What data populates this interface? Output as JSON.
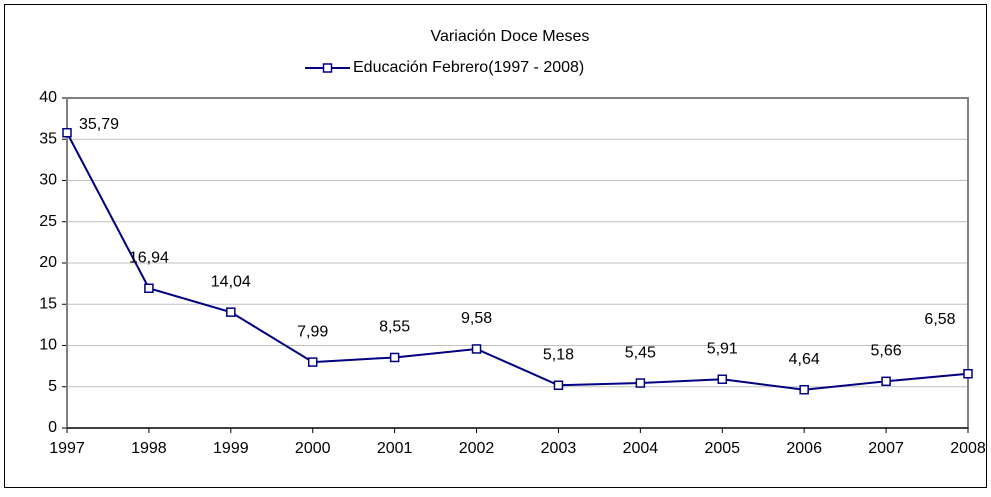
{
  "chart_data": {
    "type": "line",
    "title": "Variación Doce Meses",
    "categories": [
      "1997",
      "1998",
      "1999",
      "2000",
      "2001",
      "2002",
      "2003",
      "2004",
      "2005",
      "2006",
      "2007",
      "2008"
    ],
    "series": [
      {
        "name": "Educación Febrero(1997 - 2008)",
        "color": "#000080",
        "values": [
          35.79,
          16.94,
          14.04,
          7.99,
          8.55,
          9.58,
          5.18,
          5.45,
          5.91,
          4.64,
          5.66,
          6.58
        ],
        "value_labels": [
          "35,79",
          "16,94",
          "14,04",
          "7,99",
          "8,55",
          "9,58",
          "5,18",
          "5,45",
          "5,91",
          "4,64",
          "5,66",
          "6,58"
        ]
      }
    ],
    "ylim": [
      0,
      40
    ],
    "yticks": [
      0,
      5,
      10,
      15,
      20,
      25,
      30,
      35,
      40
    ],
    "grid": true
  }
}
